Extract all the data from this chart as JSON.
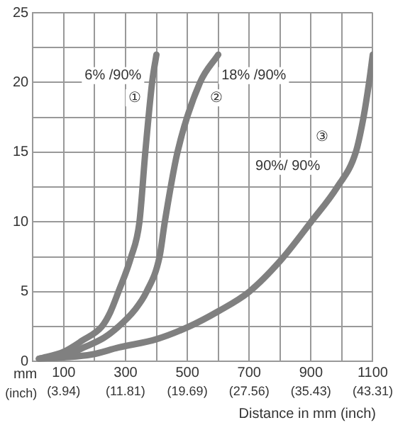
{
  "chart_data": {
    "type": "line",
    "xlabel": "Distance in mm (inch)",
    "xlim": [
      0,
      1100
    ],
    "ylim": [
      0,
      25
    ],
    "xticks": [
      {
        "value": 0,
        "label": null
      },
      100,
      {
        "value": 200,
        "label": null
      },
      300,
      {
        "value": 400,
        "label": null
      },
      500,
      {
        "value": 600,
        "label": null
      },
      700,
      {
        "value": 800,
        "label": null
      },
      900,
      {
        "value": 1000,
        "label": null
      },
      1100
    ],
    "x2lim": [
      0,
      43.31
    ],
    "x2ticks": [
      {
        "value": 3.94,
        "label": "(3.94)"
      },
      {
        "value": 11.81,
        "label": "(11.81)"
      },
      {
        "value": 19.69,
        "label": "(19.69)"
      },
      {
        "value": 27.56,
        "label": "(27.56)"
      },
      {
        "value": 35.43,
        "label": "(35.43)"
      },
      {
        "value": 43.31,
        "label": "(43.31)"
      }
    ],
    "yticks": [
      0,
      {
        "value": 2.5,
        "label": null
      },
      5,
      {
        "value": 7.5,
        "label": null
      },
      10,
      {
        "value": 12.5,
        "label": null
      },
      15,
      {
        "value": 17.5,
        "label": null
      },
      20,
      {
        "value": 22.5,
        "label": null
      },
      25
    ],
    "grid": true,
    "legend": false,
    "marker": "none",
    "line_style": "solid",
    "series": [
      {
        "color": "#808080",
        "x": [
          20,
          100,
          160,
          223,
          250,
          277,
          318,
          345,
          364,
          386,
          400
        ],
        "values": [
          0.2,
          0.7,
          1.5,
          2.5,
          3.5,
          5,
          7.5,
          10,
          15,
          20,
          22
        ]
      },
      {
        "color": "#808080",
        "x": [
          20,
          100,
          164,
          230,
          277,
          330,
          368,
          410,
          427,
          468,
          541,
          600
        ],
        "values": [
          0.2,
          0.4,
          1,
          1.7,
          2.5,
          3.7,
          5,
          7.5,
          10,
          15,
          20,
          22
        ]
      },
      {
        "color": "#808080",
        "x": [
          20,
          100,
          190,
          277,
          400,
          505,
          600,
          700,
          800,
          900,
          985,
          1045,
          1070,
          1088,
          1100
        ],
        "values": [
          0.2,
          0.3,
          0.5,
          1,
          1.6,
          2.5,
          3.6,
          5,
          7.2,
          10,
          12.5,
          15,
          17.5,
          20,
          22
        ]
      }
    ],
    "annotations": [
      "6% /90%",
      "①",
      "18% /90%",
      "②",
      "③",
      "90%/ 90%",
      "mm",
      "(inch)"
    ]
  }
}
